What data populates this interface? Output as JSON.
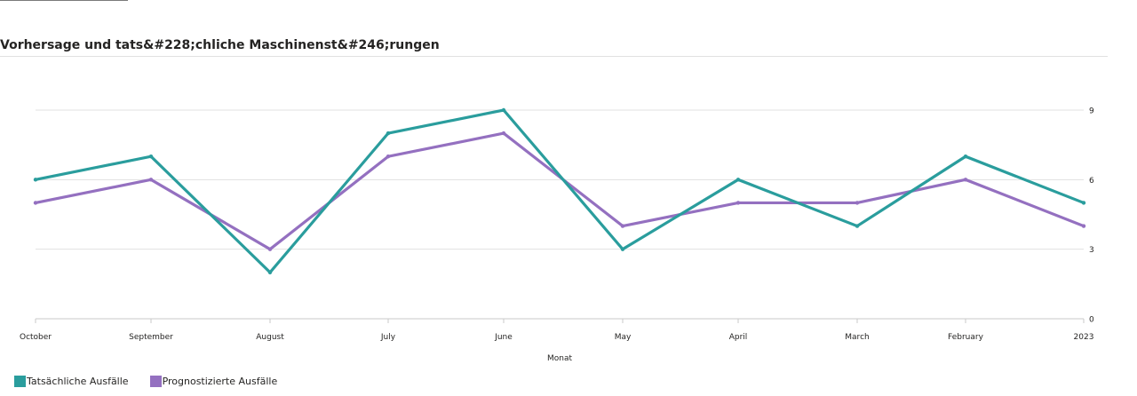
{
  "header": {
    "title": "Vorhersage und tats&#228;chliche Maschinenst&#246;rungen"
  },
  "chart_data": {
    "type": "line",
    "title": "Vorhersage und tats&#228;chliche Maschinenst&#246;rungen",
    "xlabel": "Monat",
    "ylabel": "",
    "categories": [
      "October",
      "September",
      "August",
      "July",
      "June",
      "May",
      "April",
      "March",
      "February",
      "2023"
    ],
    "ylim": [
      0,
      9
    ],
    "yticks": [
      0,
      3,
      6,
      9
    ],
    "y_axis_position": "right",
    "grid": true,
    "legend_position": "bottom-left",
    "series": [
      {
        "name": "Tatsächliche Ausfälle",
        "color": "#2a9d9d",
        "values": [
          6,
          7,
          2,
          8,
          9,
          3,
          6,
          4,
          7,
          5
        ]
      },
      {
        "name": "Prognostizierte Ausfälle",
        "color": "#9470c0",
        "values": [
          5,
          6,
          3,
          7,
          8,
          4,
          5,
          5,
          6,
          4
        ]
      }
    ]
  }
}
